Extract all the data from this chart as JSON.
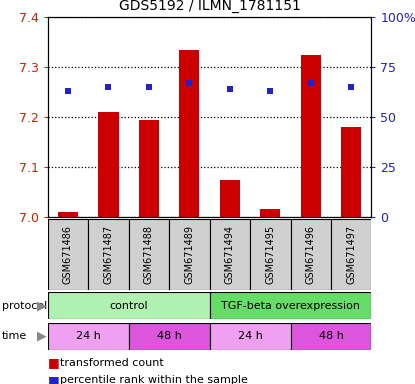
{
  "title": "GDS5192 / ILMN_1781151",
  "samples": [
    "GSM671486",
    "GSM671487",
    "GSM671488",
    "GSM671489",
    "GSM671494",
    "GSM671495",
    "GSM671496",
    "GSM671497"
  ],
  "red_values": [
    7.01,
    7.21,
    7.195,
    7.335,
    7.075,
    7.015,
    7.325,
    7.18
  ],
  "blue_values": [
    63,
    65,
    65,
    67,
    64,
    63,
    67,
    65
  ],
  "y_min": 7.0,
  "y_max": 7.4,
  "y_ticks": [
    7.0,
    7.1,
    7.2,
    7.3,
    7.4
  ],
  "y2_ticks": [
    0,
    25,
    50,
    75,
    100
  ],
  "bar_color": "#cc0000",
  "dot_color": "#2222cc",
  "grid_color": "#000000",
  "tick_label_color_left": "#cc2200",
  "tick_label_color_right": "#2222cc",
  "protocol_light_green": "#b0f0b0",
  "protocol_dark_green": "#66dd66",
  "time_light_pink": "#f0a0f0",
  "time_dark_pink": "#dd55dd",
  "sample_box_color": "#d0d0d0",
  "legend_items": [
    "transformed count",
    "percentile rank within the sample"
  ]
}
